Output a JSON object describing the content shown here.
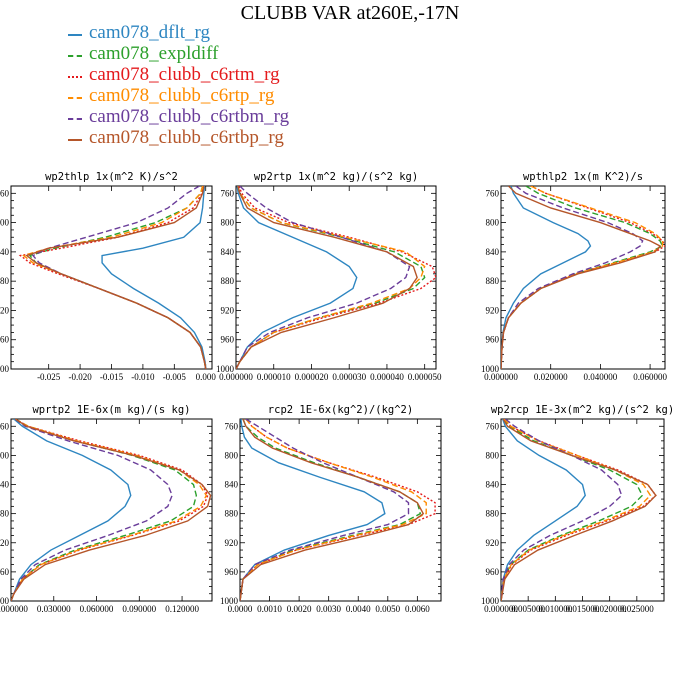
{
  "title": "CLUBB VAR at260E,-17N",
  "legend": [
    {
      "label": "cam078_dflt_rg",
      "color": "#2e86c1",
      "dash": "solid"
    },
    {
      "label": "cam078_expldiff",
      "color": "#2ca02c",
      "dash": "dashed"
    },
    {
      "label": "cam078_clubb_c6rtm_rg",
      "color": "#e41a1c",
      "dash": "dotted"
    },
    {
      "label": "cam078_clubb_c6rtp_rg",
      "color": "#ff8c00",
      "dash": "dashed"
    },
    {
      "label": "cam078_clubb_c6rtbm_rg",
      "color": "#6a3d9a",
      "dash": "dashed"
    },
    {
      "label": "cam078_clubb_c6rtbp_rg",
      "color": "#b5562a",
      "dash": "solid"
    }
  ],
  "chart_data": [
    {
      "type": "line",
      "title": "wp2thlp  1x(m^2 K)/s^2",
      "ylim": [
        1000,
        750
      ],
      "yticks": [
        760,
        800,
        840,
        880,
        920,
        960,
        1000
      ],
      "ytick_labels": [
        "760",
        "800",
        "840",
        "880",
        "920",
        "960",
        "1000"
      ],
      "xlim": [
        -0.031,
        0.001
      ],
      "xticks": [
        -0.025,
        -0.02,
        -0.015,
        -0.01,
        -0.005,
        0.0
      ],
      "xtick_labels": [
        "-0.025",
        "-0.020",
        "-0.015",
        "-0.010",
        "-0.005",
        "0.000"
      ],
      "y": [
        750,
        760,
        780,
        800,
        820,
        835,
        845,
        855,
        870,
        890,
        910,
        930,
        950,
        970,
        990,
        1000
      ],
      "series": [
        {
          "values": [
            -0.0002,
            -0.0003,
            -0.0005,
            -0.0009,
            -0.0035,
            -0.01,
            -0.0165,
            -0.0165,
            -0.015,
            -0.0115,
            -0.0075,
            -0.004,
            -0.0018,
            -0.0006,
            -0.0001,
            0.0
          ]
        },
        {
          "values": [
            -0.0005,
            -0.0008,
            -0.003,
            -0.008,
            -0.016,
            -0.024,
            -0.028,
            -0.027,
            -0.023,
            -0.017,
            -0.011,
            -0.006,
            -0.0025,
            -0.0008,
            -0.0002,
            0.0
          ]
        },
        {
          "values": [
            -0.0004,
            -0.0006,
            -0.002,
            -0.006,
            -0.014,
            -0.023,
            -0.0295,
            -0.028,
            -0.0235,
            -0.017,
            -0.011,
            -0.006,
            -0.0025,
            -0.0008,
            -0.0002,
            0.0
          ]
        },
        {
          "values": [
            -0.0005,
            -0.0008,
            -0.003,
            -0.007,
            -0.015,
            -0.025,
            -0.029,
            -0.0275,
            -0.023,
            -0.017,
            -0.011,
            -0.006,
            -0.0025,
            -0.0008,
            -0.0002,
            0.0
          ]
        },
        {
          "values": [
            -0.001,
            -0.003,
            -0.006,
            -0.011,
            -0.019,
            -0.025,
            -0.0275,
            -0.0265,
            -0.023,
            -0.017,
            -0.011,
            -0.006,
            -0.0025,
            -0.0008,
            -0.0002,
            0.0
          ]
        },
        {
          "values": [
            -0.0003,
            -0.0005,
            -0.0015,
            -0.005,
            -0.014,
            -0.025,
            -0.0285,
            -0.027,
            -0.023,
            -0.017,
            -0.011,
            -0.006,
            -0.0025,
            -0.0008,
            -0.0002,
            0.0
          ]
        }
      ]
    },
    {
      "type": "line",
      "title": "wp2rtp  1x(m^2 kg)/(s^2 kg)",
      "ylim": [
        1000,
        750
      ],
      "yticks": [
        760,
        800,
        840,
        880,
        920,
        960,
        1000
      ],
      "ytick_labels": [
        "760",
        "800",
        "840",
        "880",
        "920",
        "960",
        "1000"
      ],
      "xlim": [
        0.0,
        5.3e-05
      ],
      "xticks": [
        0.0,
        1e-05,
        2e-05,
        3e-05,
        4e-05,
        5e-05
      ],
      "xtick_labels": [
        "0.000000",
        "0.000010",
        "0.000020",
        "0.000030",
        "0.000040",
        "0.000050"
      ],
      "y": [
        750,
        760,
        780,
        800,
        820,
        840,
        860,
        875,
        890,
        910,
        930,
        950,
        970,
        990,
        1000
      ],
      "series": [
        {
          "values": [
            3e-07,
            6e-07,
            2e-06,
            6e-06,
            1.5e-05,
            2.4e-05,
            3e-05,
            3.2e-05,
            3.1e-05,
            2.5e-05,
            1.5e-05,
            7e-06,
            3e-06,
            1e-06,
            0.0
          ]
        },
        {
          "values": [
            5e-07,
            1e-06,
            4e-06,
            1.2e-05,
            2.8e-05,
            4.2e-05,
            4.9e-05,
            5e-05,
            4.7e-05,
            3.7e-05,
            2.2e-05,
            1e-05,
            4e-06,
            1e-06,
            0.0
          ]
        },
        {
          "values": [
            8e-07,
            1.5e-06,
            5e-06,
            1.4e-05,
            3e-05,
            4.4e-05,
            5.2e-05,
            5.3e-05,
            4.9e-05,
            3.8e-05,
            2.3e-05,
            1e-05,
            4e-06,
            1e-06,
            0.0
          ]
        },
        {
          "values": [
            5e-07,
            1e-06,
            4e-06,
            1.2e-05,
            2.9e-05,
            4.5e-05,
            5e-05,
            4.9e-05,
            4.6e-05,
            3.6e-05,
            2.2e-05,
            1e-05,
            4e-06,
            1e-06,
            0.0
          ]
        },
        {
          "values": [
            1e-06,
            3e-06,
            8e-06,
            1.5e-05,
            2.8e-05,
            4e-05,
            4.6e-05,
            4.5e-05,
            4.1e-05,
            3.2e-05,
            1.9e-05,
            9e-06,
            3e-06,
            1e-06,
            0.0
          ]
        },
        {
          "values": [
            5e-07,
            1e-06,
            3e-06,
            1e-05,
            2.6e-05,
            4e-05,
            4.7e-05,
            4.8e-05,
            4.6e-05,
            3.9e-05,
            2.6e-05,
            1.2e-05,
            4e-06,
            1e-06,
            0.0
          ]
        }
      ]
    },
    {
      "type": "line",
      "title": "wpthlp2  1x(m K^2)/s",
      "ylim": [
        1000,
        750
      ],
      "yticks": [
        760,
        800,
        840,
        880,
        920,
        960,
        1000
      ],
      "ytick_labels": [
        "760",
        "800",
        "840",
        "880",
        "920",
        "960",
        "1000"
      ],
      "xlim": [
        0.0,
        0.066
      ],
      "xticks": [
        0.0,
        0.02,
        0.04,
        0.06
      ],
      "xtick_labels": [
        "0.000000",
        "0.020000",
        "0.040000",
        "0.060000"
      ],
      "y": [
        750,
        760,
        780,
        800,
        815,
        825,
        832,
        840,
        855,
        870,
        890,
        910,
        930,
        950,
        970,
        1000
      ],
      "series": [
        {
          "values": [
            0.004,
            0.005,
            0.009,
            0.021,
            0.031,
            0.035,
            0.036,
            0.034,
            0.025,
            0.016,
            0.009,
            0.005,
            0.002,
            0.0008,
            0.0003,
            0.0
          ]
        },
        {
          "values": [
            0.01,
            0.015,
            0.03,
            0.05,
            0.06,
            0.064,
            0.065,
            0.06,
            0.045,
            0.03,
            0.016,
            0.008,
            0.003,
            0.001,
            0.0004,
            0.0
          ]
        },
        {
          "values": [
            0.012,
            0.018,
            0.035,
            0.052,
            0.061,
            0.065,
            0.066,
            0.062,
            0.046,
            0.03,
            0.016,
            0.008,
            0.003,
            0.001,
            0.0004,
            0.0
          ]
        },
        {
          "values": [
            0.012,
            0.018,
            0.036,
            0.054,
            0.062,
            0.065,
            0.065,
            0.061,
            0.046,
            0.03,
            0.016,
            0.008,
            0.003,
            0.001,
            0.0004,
            0.0
          ]
        },
        {
          "values": [
            0.006,
            0.01,
            0.025,
            0.043,
            0.053,
            0.057,
            0.056,
            0.052,
            0.042,
            0.029,
            0.015,
            0.007,
            0.003,
            0.001,
            0.0004,
            0.0
          ]
        },
        {
          "values": [
            0.003,
            0.006,
            0.02,
            0.04,
            0.052,
            0.06,
            0.064,
            0.062,
            0.048,
            0.031,
            0.016,
            0.008,
            0.003,
            0.001,
            0.0004,
            0.0
          ]
        }
      ]
    },
    {
      "type": "line",
      "title": "wprtp2  1E-6x(m kg)/(s kg)",
      "ylim": [
        1000,
        750
      ],
      "yticks": [
        760,
        800,
        840,
        880,
        920,
        960,
        1000
      ],
      "ytick_labels": [
        "760",
        "800",
        "840",
        "880",
        "920",
        "960",
        "1000"
      ],
      "xlim": [
        0.0,
        0.141
      ],
      "xticks": [
        0.0,
        0.03,
        0.06,
        0.09,
        0.12
      ],
      "xtick_labels": [
        "0.000000",
        "0.030000",
        "0.060000",
        "0.090000",
        "0.120000"
      ],
      "y": [
        750,
        760,
        780,
        800,
        820,
        840,
        855,
        870,
        890,
        910,
        930,
        950,
        970,
        990,
        1000
      ],
      "series": [
        {
          "values": [
            0.002,
            0.008,
            0.025,
            0.05,
            0.07,
            0.082,
            0.084,
            0.08,
            0.068,
            0.048,
            0.028,
            0.014,
            0.006,
            0.002,
            0.0
          ]
        },
        {
          "values": [
            0.003,
            0.012,
            0.045,
            0.085,
            0.115,
            0.128,
            0.13,
            0.128,
            0.112,
            0.08,
            0.045,
            0.02,
            0.008,
            0.002,
            0.0
          ]
        },
        {
          "values": [
            0.003,
            0.012,
            0.048,
            0.09,
            0.12,
            0.134,
            0.138,
            0.135,
            0.118,
            0.085,
            0.048,
            0.021,
            0.008,
            0.002,
            0.0
          ]
        },
        {
          "values": [
            0.003,
            0.012,
            0.046,
            0.088,
            0.118,
            0.132,
            0.137,
            0.133,
            0.116,
            0.084,
            0.047,
            0.021,
            0.008,
            0.002,
            0.0
          ]
        },
        {
          "values": [
            0.003,
            0.01,
            0.04,
            0.075,
            0.098,
            0.11,
            0.113,
            0.11,
            0.095,
            0.068,
            0.038,
            0.017,
            0.007,
            0.002,
            0.0
          ]
        },
        {
          "values": [
            0.003,
            0.011,
            0.044,
            0.086,
            0.118,
            0.134,
            0.14,
            0.138,
            0.124,
            0.094,
            0.055,
            0.024,
            0.009,
            0.002,
            0.0
          ]
        }
      ]
    },
    {
      "type": "line",
      "title": "rcp2  1E-6x(kg^2)/(kg^2)",
      "ylim": [
        1000,
        750
      ],
      "yticks": [
        760,
        800,
        840,
        880,
        920,
        960,
        1000
      ],
      "ytick_labels": [
        "760",
        "800",
        "840",
        "880",
        "920",
        "960",
        "1000"
      ],
      "xlim": [
        0.0,
        0.0068
      ],
      "xticks": [
        0.0,
        0.001,
        0.002,
        0.003,
        0.004,
        0.005,
        0.006
      ],
      "xtick_labels": [
        "0.0000",
        "0.0010",
        "0.0020",
        "0.0030",
        "0.0040",
        "0.0050",
        "0.0060"
      ],
      "y": [
        750,
        760,
        775,
        790,
        810,
        830,
        850,
        865,
        880,
        895,
        910,
        930,
        950,
        970,
        1000
      ],
      "series": [
        {
          "values": [
            3e-05,
            6e-05,
            0.00015,
            0.0004,
            0.0013,
            0.0027,
            0.0042,
            0.0048,
            0.0049,
            0.0043,
            0.003,
            0.0015,
            0.0005,
            0.0001,
            0.0
          ]
        },
        {
          "values": [
            0.0001,
            0.0002,
            0.0006,
            0.0012,
            0.0025,
            0.004,
            0.0054,
            0.006,
            0.0061,
            0.0054,
            0.0038,
            0.0018,
            0.0006,
            0.0001,
            0.0
          ]
        },
        {
          "values": [
            0.0002,
            0.0004,
            0.0009,
            0.0016,
            0.003,
            0.0046,
            0.006,
            0.0066,
            0.0066,
            0.0057,
            0.004,
            0.0019,
            0.0006,
            0.0001,
            0.0
          ]
        },
        {
          "values": [
            0.0002,
            0.0004,
            0.0009,
            0.0016,
            0.003,
            0.0045,
            0.0058,
            0.0063,
            0.0063,
            0.0055,
            0.0039,
            0.0019,
            0.0006,
            0.0001,
            0.0
          ]
        },
        {
          "values": [
            0.0002,
            0.0006,
            0.0012,
            0.0018,
            0.0028,
            0.004,
            0.0052,
            0.0057,
            0.0057,
            0.005,
            0.0035,
            0.0017,
            0.0005,
            0.0001,
            0.0
          ]
        },
        {
          "values": [
            0.0001,
            0.0002,
            0.0005,
            0.0011,
            0.0024,
            0.004,
            0.0054,
            0.006,
            0.0062,
            0.0057,
            0.0043,
            0.0022,
            0.0007,
            0.0001,
            0.0
          ]
        }
      ]
    },
    {
      "type": "line",
      "title": "wp2rcp  1E-3x(m^2 kg)/(s^2 kg)",
      "ylim": [
        1000,
        750
      ],
      "yticks": [
        760,
        800,
        840,
        880,
        920,
        960,
        1000
      ],
      "ytick_labels": [
        "760",
        "800",
        "840",
        "880",
        "920",
        "960",
        "1000"
      ],
      "xlim": [
        0.0,
        0.03
      ],
      "xticks": [
        0.0,
        0.005,
        0.01,
        0.015,
        0.02,
        0.025
      ],
      "xtick_labels": [
        "0.000000",
        "0.005000",
        "0.010000",
        "0.015000",
        "0.020000",
        "0.025000"
      ],
      "y": [
        750,
        760,
        780,
        800,
        820,
        840,
        855,
        870,
        890,
        910,
        930,
        950,
        970,
        1000
      ],
      "series": [
        {
          "values": [
            0.0003,
            0.0008,
            0.003,
            0.007,
            0.012,
            0.015,
            0.0155,
            0.014,
            0.01,
            0.006,
            0.003,
            0.0012,
            0.0004,
            0.0
          ]
        },
        {
          "values": [
            0.0005,
            0.0015,
            0.006,
            0.013,
            0.02,
            0.025,
            0.026,
            0.024,
            0.018,
            0.011,
            0.005,
            0.0018,
            0.0005,
            0.0
          ]
        },
        {
          "values": [
            0.0006,
            0.0018,
            0.007,
            0.014,
            0.0215,
            0.027,
            0.0285,
            0.0262,
            0.0195,
            0.012,
            0.0055,
            0.002,
            0.0006,
            0.0
          ]
        },
        {
          "values": [
            0.0006,
            0.0018,
            0.0068,
            0.014,
            0.021,
            0.0262,
            0.0275,
            0.0255,
            0.019,
            0.0115,
            0.0052,
            0.0019,
            0.0005,
            0.0
          ]
        },
        {
          "values": [
            0.0008,
            0.0025,
            0.007,
            0.013,
            0.0185,
            0.0215,
            0.0222,
            0.02,
            0.015,
            0.009,
            0.0042,
            0.0015,
            0.0004,
            0.0
          ]
        },
        {
          "values": [
            0.0004,
            0.0012,
            0.0055,
            0.013,
            0.021,
            0.027,
            0.0285,
            0.0265,
            0.0205,
            0.0135,
            0.0068,
            0.0025,
            0.0007,
            0.0
          ]
        }
      ]
    }
  ]
}
